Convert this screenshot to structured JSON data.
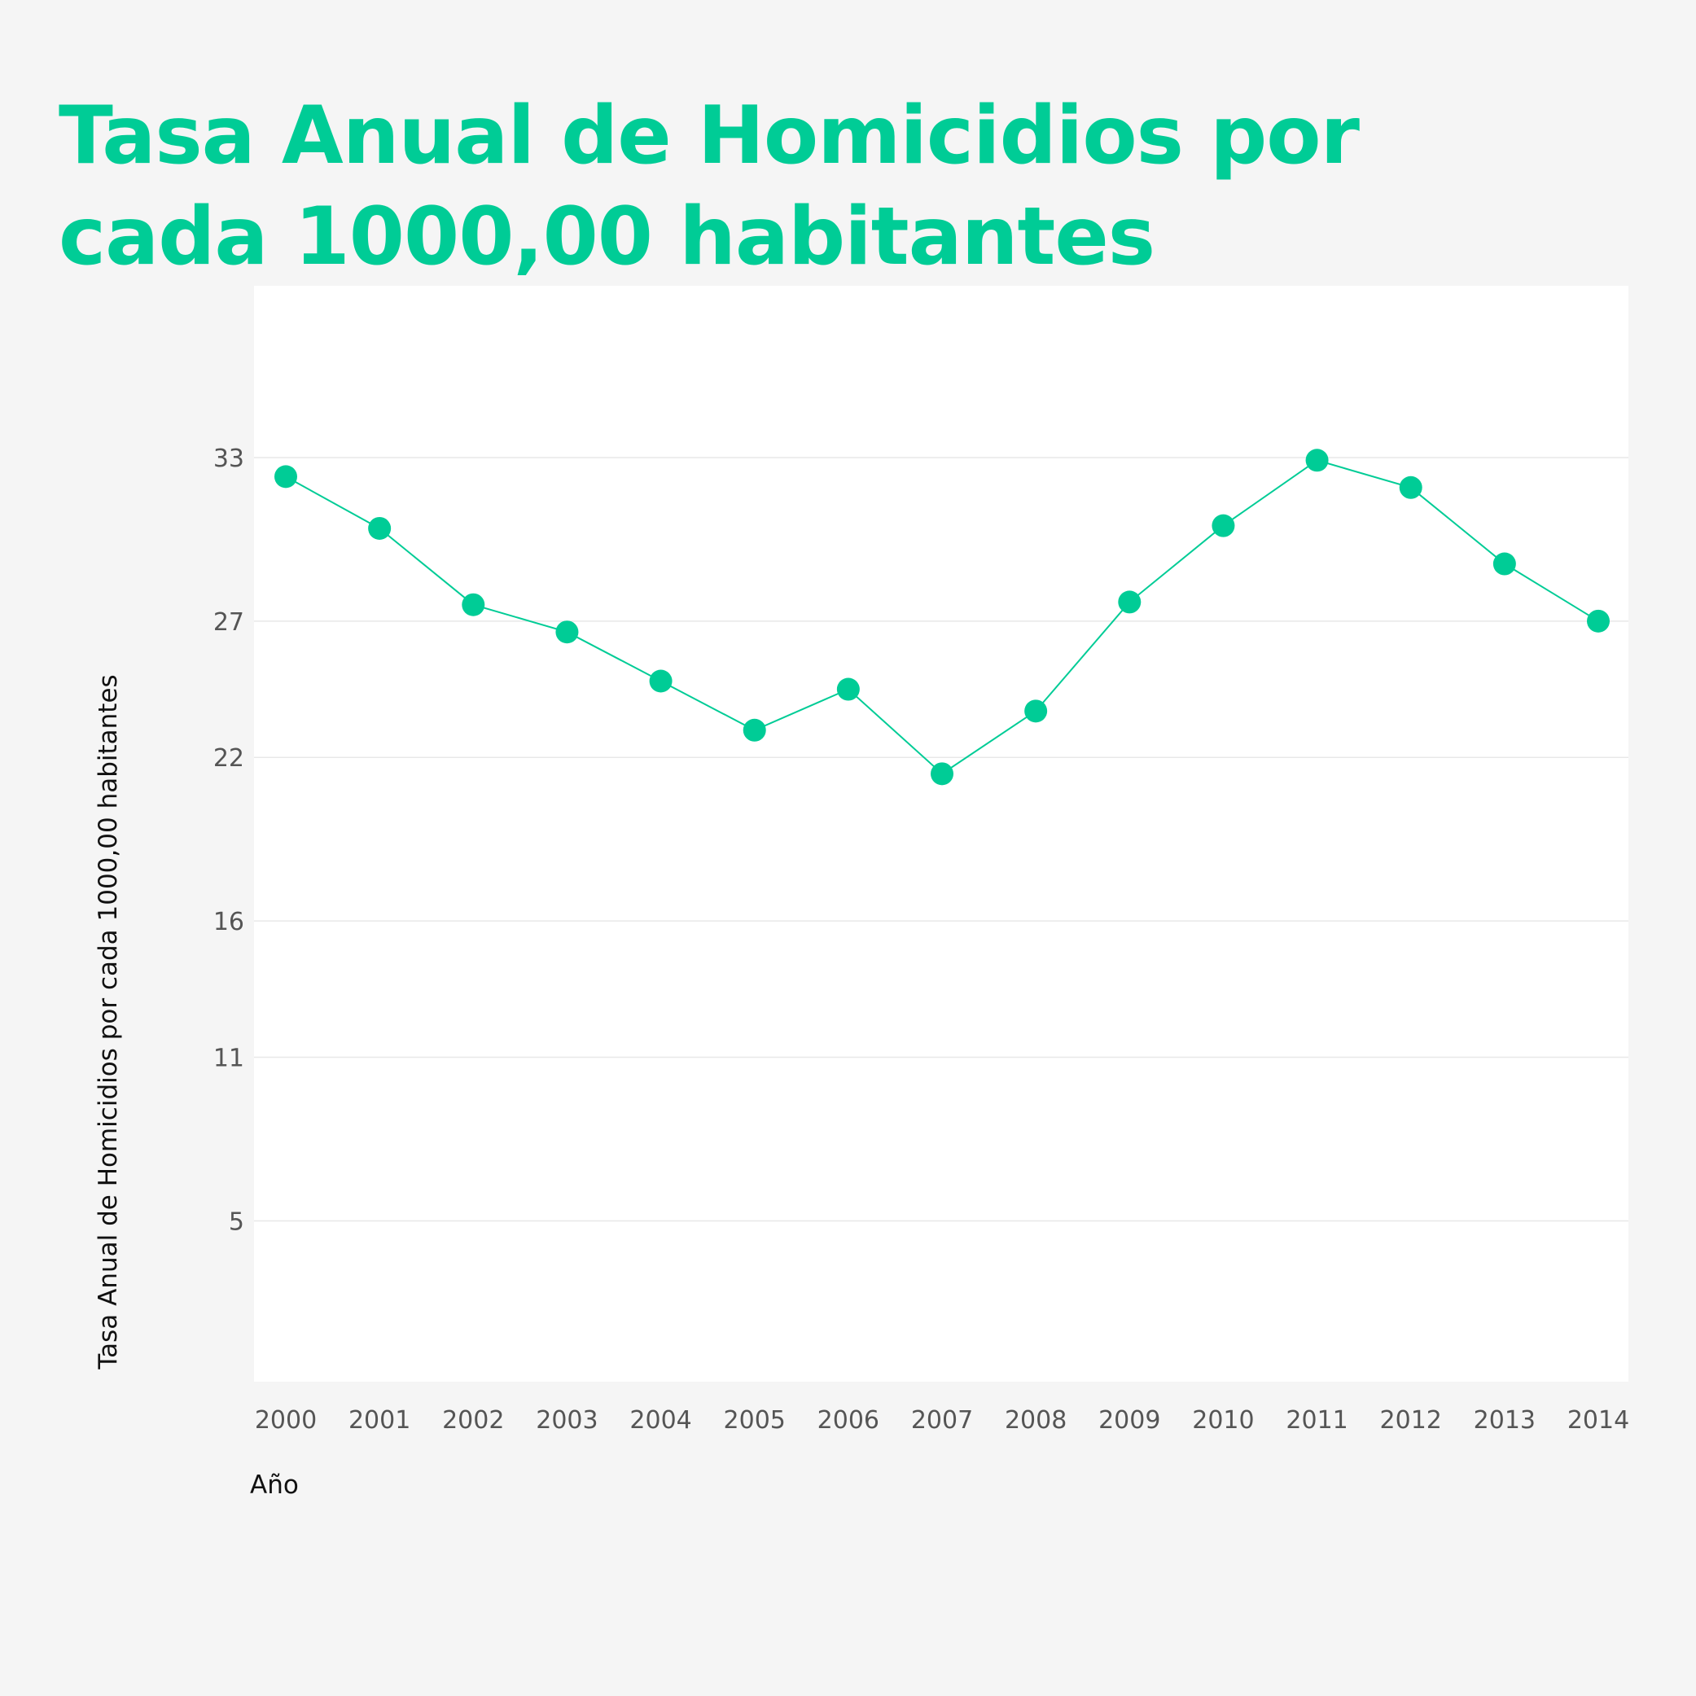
{
  "chart_data": {
    "type": "line",
    "title": "Tasa Anual de Homicidios por cada 1000,00 habitantes",
    "xlabel": "Año",
    "ylabel": "Tasa Anual de Homicidios por cada 1000,00 habitantes",
    "x": [
      "2000",
      "2001",
      "2002",
      "2003",
      "2004",
      "2005",
      "2006",
      "2007",
      "2008",
      "2009",
      "2010",
      "2011",
      "2012",
      "2013",
      "2014"
    ],
    "series": [
      {
        "values": [
          32.3,
          30.4,
          27.6,
          26.6,
          24.8,
          23.0,
          24.5,
          21.4,
          23.7,
          27.7,
          30.5,
          32.9,
          31.9,
          29.1,
          27.0
        ]
      }
    ],
    "yticks": [
      5,
      11,
      16,
      22,
      27,
      33
    ],
    "ylim": [
      -0.9,
      39.3
    ],
    "grid": true,
    "color": "#00cc96"
  }
}
